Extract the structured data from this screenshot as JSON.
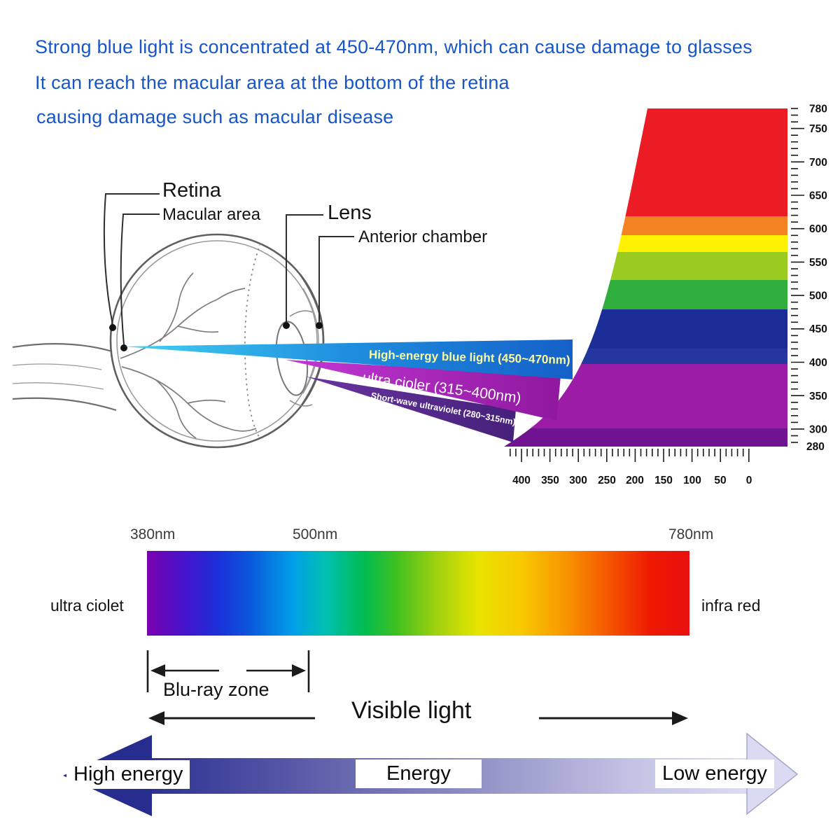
{
  "header": {
    "lines": [
      "Strong blue light is concentrated at 450-470nm, which can cause damage to glasses",
      "It can reach the macular area at the bottom of the retina",
      "causing damage such as macular disease"
    ]
  },
  "eye_labels": {
    "retina": "Retina",
    "macular_area": "Macular area",
    "lens": "Lens",
    "anterior_chamber": "Anterior chamber"
  },
  "beams": {
    "blue": "High-energy blue light (450~470nm)",
    "uva": "ultra cioler (315~400nm)",
    "uvb": "Short-wave ultraviolet (280~315nm)"
  },
  "wavelength_ruler": {
    "y_ticks": [
      "780",
      "750",
      "700",
      "650",
      "600",
      "550",
      "500",
      "450",
      "400",
      "350",
      "300",
      "280"
    ],
    "x_ticks": [
      "400",
      "350",
      "300",
      "250",
      "200",
      "150",
      "100",
      "50",
      "0"
    ]
  },
  "spectrum_bar": {
    "label_380": "380nm",
    "label_500": "500nm",
    "label_780": "780nm",
    "left": "ultra ciolet",
    "right": "infra red"
  },
  "zones": {
    "bluray": "Blu-ray zone",
    "visible": "Visible light"
  },
  "energy": {
    "high": "High energy",
    "mid": "Energy",
    "low": "Low energy"
  },
  "colors": {
    "header_text": "#1756c8",
    "beam_blue": "#1e8ede",
    "beam_uva": "#a21fae",
    "beam_uvb": "#5a2a8c",
    "energy_dark": "#262d8e",
    "energy_light": "#dadaf2",
    "band_red": "#ec1c24",
    "band_orange": "#f58220",
    "band_yellow": "#fff200",
    "band_yellowgreen": "#9bcb1e",
    "band_green": "#2fae3e",
    "band_navy": "#1b2d96",
    "band_magenta": "#9c1ca8",
    "band_violet": "#6f1390"
  }
}
